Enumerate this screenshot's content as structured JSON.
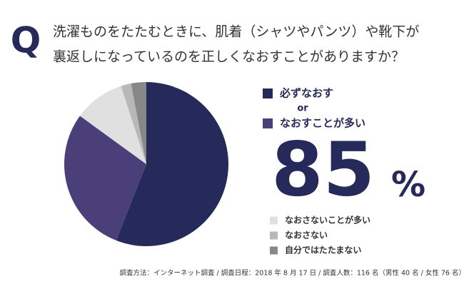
{
  "chart_data": {
    "type": "pie",
    "badge": "Q",
    "title_lines": [
      "洗濯ものをたたむときに、肌着（シャツやパンツ）や靴下が",
      "裏返しになっているのを正しくなおすことがありますか？"
    ],
    "categories": [
      "必ずなおす",
      "なおすことが多い",
      "なおさないことが多い",
      "なおさない",
      "自分ではたたまない"
    ],
    "values": [
      56,
      29,
      10,
      2,
      3
    ],
    "colors": [
      "#262a5a",
      "#4b3f7a",
      "#e0e0e0",
      "#b8b8b8",
      "#888888"
    ],
    "legend_joiner": "or",
    "highlight_value": 85,
    "highlight_unit": "%",
    "footnote": "調査方法：インターネット調査 / 調査日程：2018 年 8 月 17 日 / 調査人数：116 名（男性 40 名 / 女性 76 名）"
  }
}
